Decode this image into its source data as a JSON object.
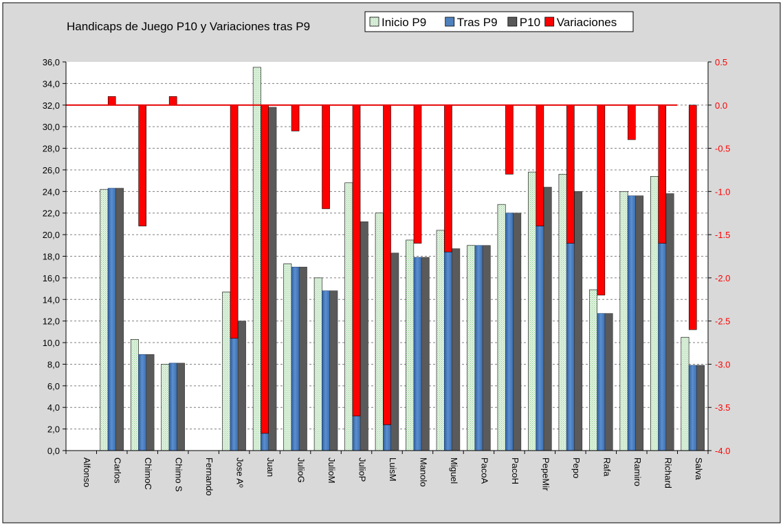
{
  "chart_data": {
    "type": "bar",
    "title": "Handicaps de Juego P10 y Variaciones tras P9",
    "categories": [
      "Alfonso",
      "Carlos",
      "ChimoC",
      "Chimo S",
      "Fernando",
      "Jose Aº",
      "Juan",
      "JulioG",
      "JulioM",
      "JulioP",
      "LuisM",
      "Manolo",
      "Miguel",
      "PacoA",
      "PacoH",
      "PepeMir",
      "Pepo",
      "Rafa",
      "Ramiro",
      "Richard",
      "Salva"
    ],
    "left_axis": {
      "min": 0,
      "max": 36,
      "step": 2,
      "decimals": 1
    },
    "right_axis": {
      "min": -4.0,
      "max": 0.5,
      "step": 0.5,
      "decimals": 1
    },
    "grid": true,
    "legend_position": "top",
    "series": [
      {
        "name": "Inicio P9",
        "axis": "left",
        "color": "#dff3df",
        "values": [
          null,
          24.2,
          10.3,
          8.0,
          null,
          14.7,
          35.5,
          17.3,
          16.0,
          24.8,
          22.0,
          19.5,
          20.4,
          19.0,
          22.8,
          25.8,
          25.6,
          14.9,
          24.0,
          25.4,
          10.5
        ]
      },
      {
        "name": "Tras P9",
        "axis": "left",
        "color": "#4f81bd",
        "values": [
          null,
          24.3,
          8.9,
          8.1,
          null,
          10.4,
          1.6,
          17.0,
          14.8,
          3.2,
          2.4,
          17.9,
          18.4,
          19.0,
          22.0,
          20.8,
          19.2,
          12.7,
          23.6,
          19.2,
          7.9
        ]
      },
      {
        "name": "P10",
        "axis": "left",
        "color": "#595959",
        "values": [
          null,
          24.3,
          8.9,
          8.1,
          null,
          12.0,
          31.8,
          17.0,
          14.8,
          21.2,
          18.3,
          17.9,
          18.7,
          19.0,
          22.0,
          24.4,
          24.0,
          12.7,
          23.6,
          23.8,
          7.9
        ]
      },
      {
        "name": "Variaciones",
        "axis": "right",
        "color": "#ff0000",
        "values": [
          null,
          0.1,
          -1.4,
          0.1,
          null,
          -2.7,
          -3.8,
          -0.3,
          -1.2,
          -3.6,
          -3.7,
          -1.6,
          -1.7,
          null,
          -0.8,
          -1.4,
          -1.6,
          -2.2,
          -0.4,
          -1.6,
          -2.6
        ]
      }
    ]
  }
}
